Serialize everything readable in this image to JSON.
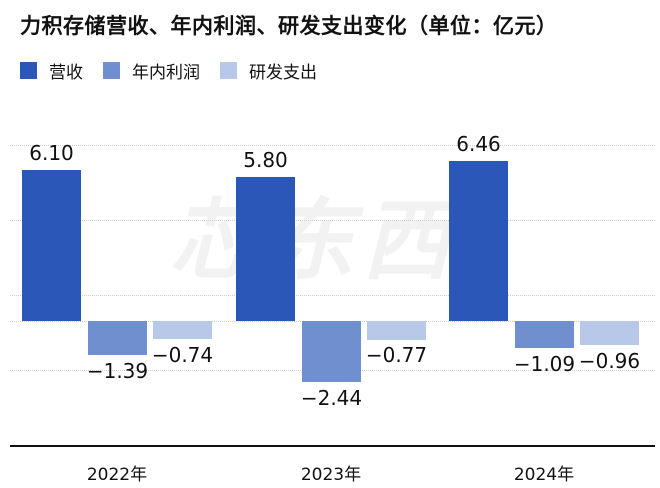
{
  "title": "力积存储营收、年内利润、研发支出变化（单位：亿元）",
  "legend": [
    {
      "label": "营收",
      "color": "#2b58b8"
    },
    {
      "label": "年内利润",
      "color": "#6f8fcf"
    },
    {
      "label": "研发支出",
      "color": "#b7c8e8"
    }
  ],
  "watermark": "芯东西",
  "chart_data": {
    "type": "bar",
    "title": "力积存储营收、年内利润、研发支出变化（单位：亿元）",
    "xlabel": "",
    "ylabel": "亿元",
    "categories": [
      "2022年",
      "2023年",
      "2024年"
    ],
    "series": [
      {
        "name": "营收",
        "values": [
          6.1,
          5.8,
          6.46
        ],
        "labels": [
          "6.10",
          "5.80",
          "6.46"
        ]
      },
      {
        "name": "年内利润",
        "values": [
          -1.39,
          -2.44,
          -1.09
        ],
        "labels": [
          "−1.39",
          "−2.44",
          "−1.09"
        ]
      },
      {
        "name": "研发支出",
        "values": [
          -0.74,
          -0.77,
          -0.96
        ],
        "labels": [
          "−0.74",
          "−0.77",
          "−0.96"
        ]
      }
    ],
    "ylim": [
      -3.5,
      7.5
    ],
    "grid": true,
    "legend_position": "top-left"
  }
}
